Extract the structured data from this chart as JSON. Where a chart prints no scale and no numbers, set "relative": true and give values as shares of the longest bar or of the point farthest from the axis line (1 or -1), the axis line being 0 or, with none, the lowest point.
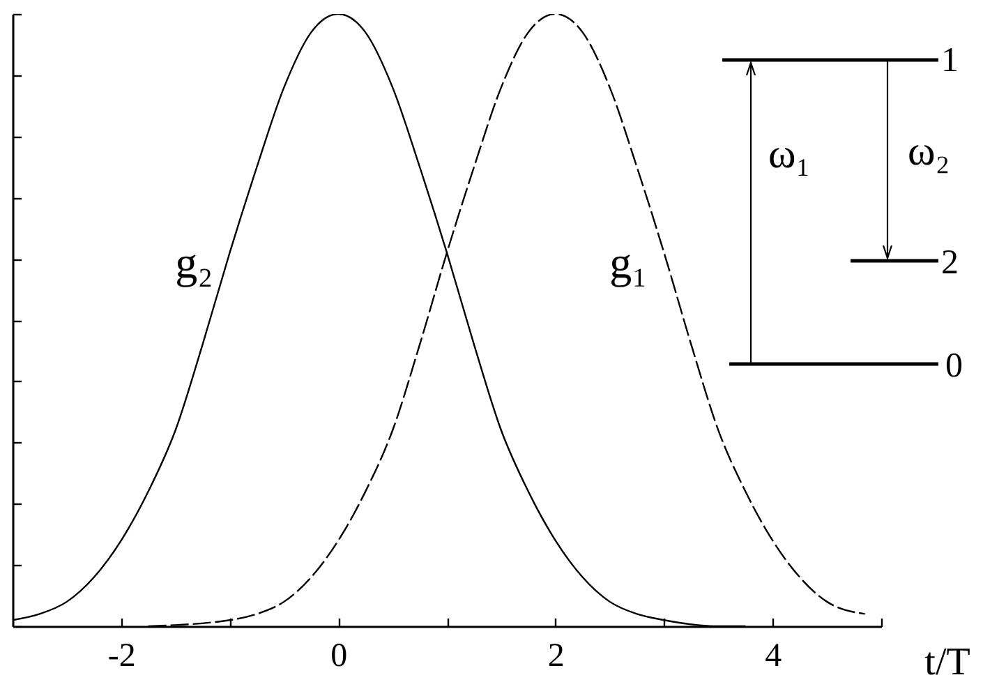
{
  "chart_data": {
    "type": "line",
    "xlabel": "t/T",
    "relative": true,
    "xlim": [
      -3,
      5
    ],
    "xticks": [
      -2,
      {
        "value": -1,
        "label": null
      },
      0,
      {
        "value": 1,
        "label": null
      },
      2,
      {
        "value": 3,
        "label": null
      },
      4,
      {
        "value": 5,
        "label": null
      }
    ],
    "series": [
      {
        "name": "g₂",
        "color": "#000000",
        "line_style": "solid",
        "x": [
          -3,
          -2.75,
          -2.5,
          -2.25,
          -2,
          -1.75,
          -1.5,
          -1.25,
          -1,
          -0.75,
          -0.5,
          -0.25,
          0,
          0.25,
          0.5,
          0.75,
          1,
          1.25,
          1.5,
          1.75,
          2,
          2.25,
          2.5,
          2.75,
          3,
          3.5,
          3.75
        ],
        "values": [
          0.01,
          0.02,
          0.04,
          0.08,
          0.14,
          0.22,
          0.32,
          0.46,
          0.61,
          0.75,
          0.88,
          0.97,
          1,
          0.97,
          0.88,
          0.75,
          0.61,
          0.46,
          0.32,
          0.22,
          0.14,
          0.08,
          0.04,
          0.02,
          0.01,
          0,
          0
        ]
      },
      {
        "name": "g₁",
        "color": "#000000",
        "line_style": "dashed",
        "x": [
          -1.75,
          -1,
          -0.75,
          -0.5,
          -0.25,
          0,
          0.25,
          0.5,
          0.75,
          1,
          1.25,
          1.5,
          1.75,
          2,
          2.25,
          2.5,
          2.75,
          3,
          3.25,
          3.5,
          3.75,
          4,
          4.25,
          4.5,
          4.85
        ],
        "values": [
          0,
          0.01,
          0.02,
          0.04,
          0.08,
          0.14,
          0.22,
          0.32,
          0.46,
          0.61,
          0.75,
          0.88,
          0.97,
          1,
          0.97,
          0.88,
          0.75,
          0.61,
          0.46,
          0.32,
          0.22,
          0.14,
          0.08,
          0.04,
          0.02
        ]
      }
    ],
    "annotations": [
      "1",
      "ω₁",
      "ω₂",
      "2",
      "0"
    ]
  }
}
